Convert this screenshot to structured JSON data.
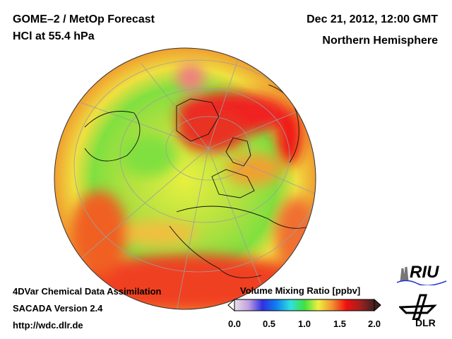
{
  "header": {
    "title_line1": "GOME–2 / MetOp Forecast",
    "title_line2": "HCl at 55.4 hPa",
    "date": "Dec 21, 2012, 12:00 GMT",
    "region": "Northern Hemisphere"
  },
  "footer": {
    "line1": "4DVar Chemical Data Assimilation",
    "line2": "SACADA Version 2.4",
    "url": "http://wdc.dlr.de"
  },
  "colorbar": {
    "title": "Volume Mixing Ratio [ppbv]",
    "ticks": [
      "0.0",
      "0.5",
      "1.0",
      "1.5",
      "2.0"
    ],
    "range": [
      0.0,
      2.0
    ],
    "colors": [
      "#e8e0e8",
      "#c0a0e0",
      "#3030e0",
      "#1080f0",
      "#30e0e0",
      "#40e040",
      "#f0f040",
      "#f09030",
      "#f01010",
      "#a02020",
      "#402020"
    ]
  },
  "logos": {
    "riu": "RIU",
    "dlr": "DLR"
  }
}
